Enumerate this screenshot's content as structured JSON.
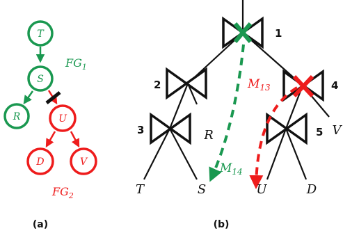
{
  "colors": {
    "green": "#1a9850",
    "red": "#ee1c1c",
    "black": "#111111"
  },
  "panel_a": {
    "caption": "(a)",
    "nodes": {
      "T": "T",
      "S": "S",
      "R": "R",
      "U": "U",
      "D": "D",
      "V": "V"
    },
    "fg1": {
      "base": "FG",
      "sub": "1"
    },
    "fg2": {
      "base": "FG",
      "sub": "2"
    }
  },
  "panel_b": {
    "caption": "(b)",
    "join_numbers": [
      "1",
      "2",
      "3",
      "4",
      "5"
    ],
    "leaves": {
      "T": "T",
      "S": "S",
      "U": "U",
      "D": "D",
      "R": "R",
      "V": "V"
    },
    "m13": {
      "base": "M",
      "sub": "13"
    },
    "m14": {
      "base": "M",
      "sub": "14"
    }
  }
}
